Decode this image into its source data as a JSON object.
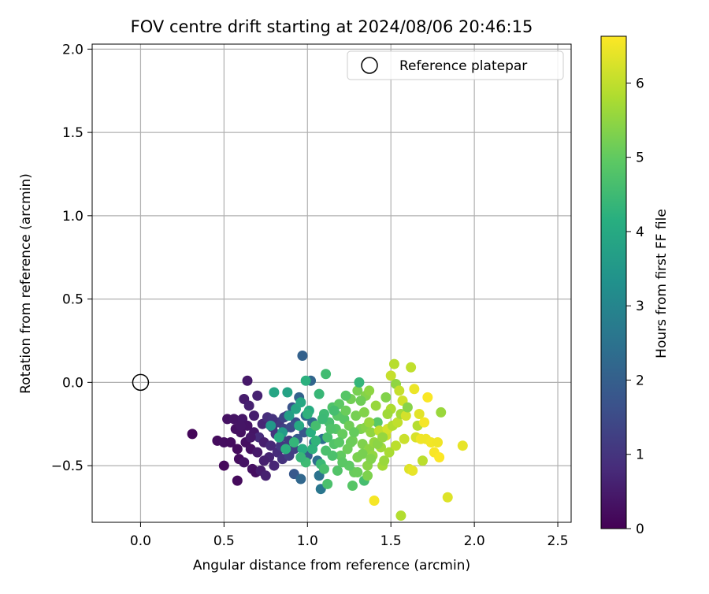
{
  "chart_data": {
    "type": "scatter",
    "title": "FOV centre drift starting at 2024/08/06 20:46:15",
    "xlabel": "Angular distance from reference (arcmin)",
    "ylabel": "Rotation from reference (arcmin)",
    "xlim": [
      -0.29,
      2.58
    ],
    "ylim": [
      -0.84,
      2.03
    ],
    "x_ticks": [
      0.0,
      0.5,
      1.0,
      1.5,
      2.0,
      2.5
    ],
    "y_ticks": [
      -0.5,
      0.0,
      0.5,
      1.0,
      1.5,
      2.0
    ],
    "x_tick_labels": [
      "0.0",
      "0.5",
      "1.0",
      "1.5",
      "2.0",
      "2.5"
    ],
    "y_tick_labels": [
      "−0.5",
      "0.0",
      "0.5",
      "1.0",
      "1.5",
      "2.0"
    ],
    "grid": true,
    "legend": {
      "location": "upper right",
      "entries": [
        "Reference platepar"
      ]
    },
    "reference_point": {
      "x": 0.0,
      "y": 0.0,
      "marker": "open circle",
      "label": "Reference platepar"
    },
    "colorbar": {
      "label": "Hours from first FF file",
      "colormap": "viridis",
      "range": [
        0,
        6.63
      ],
      "ticks": [
        0,
        1,
        2,
        3,
        4,
        5,
        6
      ],
      "tick_labels": [
        "0",
        "1",
        "2",
        "3",
        "4",
        "5",
        "6"
      ]
    },
    "points": [
      {
        "x": 0.31,
        "y": -0.31,
        "h": 0.1
      },
      {
        "x": 0.46,
        "y": -0.35,
        "h": 0.2
      },
      {
        "x": 0.5,
        "y": -0.36,
        "h": 0.25
      },
      {
        "x": 0.5,
        "y": -0.5,
        "h": 0.15
      },
      {
        "x": 0.52,
        "y": -0.22,
        "h": 0.3
      },
      {
        "x": 0.56,
        "y": -0.22,
        "h": 0.35
      },
      {
        "x": 0.57,
        "y": -0.28,
        "h": 0.28
      },
      {
        "x": 0.58,
        "y": -0.4,
        "h": 0.2
      },
      {
        "x": 0.58,
        "y": -0.59,
        "h": 0.18
      },
      {
        "x": 0.59,
        "y": -0.46,
        "h": 0.22
      },
      {
        "x": 0.6,
        "y": -0.3,
        "h": 0.3
      },
      {
        "x": 0.61,
        "y": -0.22,
        "h": 0.4
      },
      {
        "x": 0.62,
        "y": -0.1,
        "h": 0.5
      },
      {
        "x": 0.62,
        "y": -0.48,
        "h": 0.35
      },
      {
        "x": 0.63,
        "y": -0.36,
        "h": 0.25
      },
      {
        "x": 0.64,
        "y": 0.01,
        "h": 0.45
      },
      {
        "x": 0.64,
        "y": -0.26,
        "h": 0.33
      },
      {
        "x": 0.65,
        "y": -0.14,
        "h": 0.6
      },
      {
        "x": 0.66,
        "y": -0.4,
        "h": 0.28
      },
      {
        "x": 0.67,
        "y": -0.52,
        "h": 0.3
      },
      {
        "x": 0.68,
        "y": -0.2,
        "h": 0.55
      },
      {
        "x": 0.68,
        "y": -0.3,
        "h": 0.4
      },
      {
        "x": 0.69,
        "y": -0.54,
        "h": 0.26
      },
      {
        "x": 0.7,
        "y": -0.08,
        "h": 0.62
      },
      {
        "x": 0.7,
        "y": -0.42,
        "h": 0.45
      },
      {
        "x": 0.71,
        "y": -0.33,
        "h": 0.8
      },
      {
        "x": 0.72,
        "y": -0.53,
        "h": 0.5
      },
      {
        "x": 0.73,
        "y": -0.25,
        "h": 0.7
      },
      {
        "x": 0.74,
        "y": -0.36,
        "h": 0.55
      },
      {
        "x": 0.75,
        "y": -0.56,
        "h": 0.6
      },
      {
        "x": 0.76,
        "y": -0.21,
        "h": 0.85
      },
      {
        "x": 0.77,
        "y": -0.45,
        "h": 0.65
      },
      {
        "x": 0.78,
        "y": -0.38,
        "h": 0.75
      },
      {
        "x": 0.79,
        "y": -0.27,
        "h": 0.9
      },
      {
        "x": 0.8,
        "y": -0.5,
        "h": 0.7
      },
      {
        "x": 0.81,
        "y": -0.31,
        "h": 1.0
      },
      {
        "x": 0.82,
        "y": -0.42,
        "h": 0.8
      },
      {
        "x": 0.83,
        "y": -0.24,
        "h": 1.1
      },
      {
        "x": 0.84,
        "y": -0.33,
        "h": 1.2
      },
      {
        "x": 0.85,
        "y": -0.46,
        "h": 0.95
      },
      {
        "x": 0.86,
        "y": -0.28,
        "h": 1.3
      },
      {
        "x": 0.87,
        "y": -0.4,
        "h": 1.05
      },
      {
        "x": 0.88,
        "y": -0.2,
        "h": 1.4
      },
      {
        "x": 0.89,
        "y": -0.35,
        "h": 1.15
      },
      {
        "x": 0.9,
        "y": -0.27,
        "h": 1.5
      },
      {
        "x": 0.91,
        "y": -0.15,
        "h": 1.7
      },
      {
        "x": 0.92,
        "y": -0.4,
        "h": 1.25
      },
      {
        "x": 0.92,
        "y": -0.55,
        "h": 1.8
      },
      {
        "x": 0.93,
        "y": -0.24,
        "h": 1.6
      },
      {
        "x": 0.94,
        "y": -0.34,
        "h": 1.9
      },
      {
        "x": 0.95,
        "y": -0.09,
        "h": 2.1
      },
      {
        "x": 0.96,
        "y": -0.58,
        "h": 2.2
      },
      {
        "x": 0.97,
        "y": 0.16,
        "h": 2.05
      },
      {
        "x": 0.98,
        "y": -0.3,
        "h": 1.75
      },
      {
        "x": 0.99,
        "y": -0.2,
        "h": 2.3
      },
      {
        "x": 1.0,
        "y": -0.44,
        "h": 1.95
      },
      {
        "x": 1.02,
        "y": 0.01,
        "h": 2.15
      },
      {
        "x": 1.03,
        "y": -0.24,
        "h": 2.25
      },
      {
        "x": 1.04,
        "y": -0.36,
        "h": 2.35
      },
      {
        "x": 1.06,
        "y": -0.47,
        "h": 2.4
      },
      {
        "x": 1.07,
        "y": -0.56,
        "h": 2.5
      },
      {
        "x": 1.08,
        "y": -0.64,
        "h": 2.6
      },
      {
        "x": 1.09,
        "y": -0.34,
        "h": 2.45
      },
      {
        "x": 0.54,
        "y": -0.36,
        "h": 0.23
      },
      {
        "x": 0.6,
        "y": -0.26,
        "h": 0.37
      },
      {
        "x": 0.66,
        "y": -0.33,
        "h": 0.42
      },
      {
        "x": 0.74,
        "y": -0.47,
        "h": 0.58
      },
      {
        "x": 0.79,
        "y": -0.22,
        "h": 0.95
      },
      {
        "x": 0.84,
        "y": -0.38,
        "h": 1.08
      },
      {
        "x": 0.86,
        "y": -0.21,
        "h": 1.35
      },
      {
        "x": 0.89,
        "y": -0.44,
        "h": 1.18
      },
      {
        "x": 0.88,
        "y": -0.06,
        "h": 3.8
      },
      {
        "x": 0.8,
        "y": -0.06,
        "h": 3.9
      },
      {
        "x": 0.78,
        "y": -0.26,
        "h": 3.5
      },
      {
        "x": 0.85,
        "y": -0.3,
        "h": 3.6
      },
      {
        "x": 0.89,
        "y": -0.2,
        "h": 3.7
      },
      {
        "x": 0.93,
        "y": -0.16,
        "h": 3.85
      },
      {
        "x": 0.95,
        "y": -0.26,
        "h": 4.0
      },
      {
        "x": 0.97,
        "y": -0.4,
        "h": 4.1
      },
      {
        "x": 0.99,
        "y": 0.01,
        "h": 4.2
      },
      {
        "x": 1.01,
        "y": -0.17,
        "h": 4.05
      },
      {
        "x": 1.02,
        "y": -0.3,
        "h": 4.15
      },
      {
        "x": 1.03,
        "y": -0.4,
        "h": 4.25
      },
      {
        "x": 1.05,
        "y": -0.35,
        "h": 4.3
      },
      {
        "x": 1.07,
        "y": -0.07,
        "h": 4.4
      },
      {
        "x": 1.08,
        "y": -0.49,
        "h": 4.45
      },
      {
        "x": 1.1,
        "y": -0.19,
        "h": 4.5
      },
      {
        "x": 1.11,
        "y": 0.05,
        "h": 4.55
      },
      {
        "x": 1.12,
        "y": -0.33,
        "h": 4.6
      },
      {
        "x": 1.12,
        "y": -0.61,
        "h": 4.7
      },
      {
        "x": 1.13,
        "y": -0.24,
        "h": 4.65
      },
      {
        "x": 1.15,
        "y": -0.15,
        "h": 4.75
      },
      {
        "x": 1.16,
        "y": -0.37,
        "h": 4.8
      },
      {
        "x": 1.17,
        "y": -0.28,
        "h": 4.85
      },
      {
        "x": 1.18,
        "y": -0.2,
        "h": 4.9
      },
      {
        "x": 1.19,
        "y": -0.13,
        "h": 4.95
      },
      {
        "x": 1.2,
        "y": -0.44,
        "h": 5.0
      },
      {
        "x": 1.21,
        "y": -0.31,
        "h": 5.05
      },
      {
        "x": 1.22,
        "y": -0.22,
        "h": 4.88
      },
      {
        "x": 1.23,
        "y": -0.17,
        "h": 5.1
      },
      {
        "x": 1.24,
        "y": -0.4,
        "h": 5.12
      },
      {
        "x": 1.25,
        "y": -0.26,
        "h": 5.15
      },
      {
        "x": 1.26,
        "y": -0.1,
        "h": 5.18
      },
      {
        "x": 1.27,
        "y": -0.35,
        "h": 5.2
      },
      {
        "x": 1.28,
        "y": -0.54,
        "h": 5.08
      },
      {
        "x": 1.29,
        "y": -0.2,
        "h": 5.22
      },
      {
        "x": 1.3,
        "y": -0.05,
        "h": 5.25
      },
      {
        "x": 1.3,
        "y": -0.45,
        "h": 5.28
      },
      {
        "x": 1.31,
        "y": 0.0,
        "h": 4.35
      },
      {
        "x": 1.32,
        "y": -0.28,
        "h": 5.3
      },
      {
        "x": 1.33,
        "y": -0.37,
        "h": 5.32
      },
      {
        "x": 1.34,
        "y": -0.18,
        "h": 5.35
      },
      {
        "x": 1.34,
        "y": -0.59,
        "h": 4.6
      },
      {
        "x": 1.35,
        "y": -0.08,
        "h": 5.38
      },
      {
        "x": 1.35,
        "y": -0.27,
        "h": 5.4
      },
      {
        "x": 1.36,
        "y": -0.5,
        "h": 5.42
      },
      {
        "x": 1.37,
        "y": -0.4,
        "h": 5.45
      },
      {
        "x": 1.37,
        "y": -0.05,
        "h": 5.48
      },
      {
        "x": 1.38,
        "y": -0.3,
        "h": 5.5
      },
      {
        "x": 1.39,
        "y": -0.44,
        "h": 5.52
      },
      {
        "x": 1.4,
        "y": -0.36,
        "h": 5.55
      },
      {
        "x": 1.41,
        "y": -0.14,
        "h": 5.58
      },
      {
        "x": 1.42,
        "y": -0.24,
        "h": 4.9
      },
      {
        "x": 1.43,
        "y": -0.29,
        "h": 6.0
      },
      {
        "x": 1.44,
        "y": -0.39,
        "h": 5.65
      },
      {
        "x": 1.45,
        "y": -0.5,
        "h": 5.7
      },
      {
        "x": 1.46,
        "y": -0.47,
        "h": 5.6
      },
      {
        "x": 1.47,
        "y": -0.09,
        "h": 5.35
      },
      {
        "x": 1.47,
        "y": -0.32,
        "h": 6.1
      },
      {
        "x": 1.48,
        "y": -0.28,
        "h": 6.2
      },
      {
        "x": 1.49,
        "y": -0.42,
        "h": 5.75
      },
      {
        "x": 1.5,
        "y": -0.16,
        "h": 5.8
      },
      {
        "x": 1.5,
        "y": 0.04,
        "h": 6.05
      },
      {
        "x": 1.51,
        "y": -0.26,
        "h": 5.85
      },
      {
        "x": 1.52,
        "y": 0.11,
        "h": 5.9
      },
      {
        "x": 1.53,
        "y": -0.38,
        "h": 5.95
      },
      {
        "x": 1.53,
        "y": -0.01,
        "h": 5.5
      },
      {
        "x": 1.54,
        "y": -0.24,
        "h": 6.0
      },
      {
        "x": 1.55,
        "y": -0.05,
        "h": 6.05
      },
      {
        "x": 1.56,
        "y": -0.19,
        "h": 5.7
      },
      {
        "x": 1.56,
        "y": -0.8,
        "h": 5.85
      },
      {
        "x": 1.57,
        "y": -0.11,
        "h": 6.15
      },
      {
        "x": 1.58,
        "y": -0.34,
        "h": 6.1
      },
      {
        "x": 1.59,
        "y": -0.2,
        "h": 6.2
      },
      {
        "x": 1.6,
        "y": -0.15,
        "h": 5.4
      },
      {
        "x": 1.61,
        "y": -0.52,
        "h": 6.3
      },
      {
        "x": 1.62,
        "y": 0.09,
        "h": 6.0
      },
      {
        "x": 1.63,
        "y": -0.53,
        "h": 6.4
      },
      {
        "x": 1.64,
        "y": -0.04,
        "h": 6.45
      },
      {
        "x": 1.65,
        "y": -0.33,
        "h": 6.25
      },
      {
        "x": 1.66,
        "y": -0.26,
        "h": 5.88
      },
      {
        "x": 1.67,
        "y": -0.19,
        "h": 6.35
      },
      {
        "x": 1.68,
        "y": -0.34,
        "h": 6.5
      },
      {
        "x": 1.69,
        "y": -0.47,
        "h": 5.95
      },
      {
        "x": 1.7,
        "y": -0.24,
        "h": 6.55
      },
      {
        "x": 1.71,
        "y": -0.34,
        "h": 6.48
      },
      {
        "x": 1.72,
        "y": -0.09,
        "h": 6.6
      },
      {
        "x": 1.74,
        "y": -0.36,
        "h": 6.52
      },
      {
        "x": 1.76,
        "y": -0.42,
        "h": 6.58
      },
      {
        "x": 1.78,
        "y": -0.36,
        "h": 6.5
      },
      {
        "x": 1.79,
        "y": -0.45,
        "h": 6.62
      },
      {
        "x": 1.8,
        "y": -0.18,
        "h": 5.6
      },
      {
        "x": 1.84,
        "y": -0.69,
        "h": 6.3
      },
      {
        "x": 1.93,
        "y": -0.38,
        "h": 6.4
      },
      {
        "x": 1.4,
        "y": -0.71,
        "h": 6.55
      },
      {
        "x": 1.36,
        "y": -0.56,
        "h": 5.3
      },
      {
        "x": 1.3,
        "y": -0.54,
        "h": 5.1
      },
      {
        "x": 1.27,
        "y": -0.62,
        "h": 4.85
      },
      {
        "x": 1.25,
        "y": -0.5,
        "h": 4.95
      },
      {
        "x": 1.18,
        "y": -0.53,
        "h": 4.8
      },
      {
        "x": 1.15,
        "y": -0.44,
        "h": 4.7
      },
      {
        "x": 1.1,
        "y": -0.52,
        "h": 4.65
      },
      {
        "x": 0.99,
        "y": -0.48,
        "h": 4.5
      },
      {
        "x": 0.96,
        "y": -0.45,
        "h": 4.4
      },
      {
        "x": 0.92,
        "y": -0.36,
        "h": 4.35
      },
      {
        "x": 0.87,
        "y": -0.4,
        "h": 4.2
      },
      {
        "x": 0.83,
        "y": -0.33,
        "h": 4.1
      },
      {
        "x": 1.05,
        "y": -0.26,
        "h": 4.6
      },
      {
        "x": 1.14,
        "y": -0.28,
        "h": 4.75
      },
      {
        "x": 1.19,
        "y": -0.36,
        "h": 4.9
      },
      {
        "x": 1.28,
        "y": -0.3,
        "h": 5.05
      },
      {
        "x": 1.33,
        "y": -0.43,
        "h": 5.25
      },
      {
        "x": 1.38,
        "y": -0.46,
        "h": 5.35
      },
      {
        "x": 1.42,
        "y": -0.37,
        "h": 5.45
      },
      {
        "x": 1.45,
        "y": -0.33,
        "h": 5.55
      },
      {
        "x": 1.48,
        "y": -0.19,
        "h": 5.65
      },
      {
        "x": 1.37,
        "y": -0.24,
        "h": 5.6
      },
      {
        "x": 1.32,
        "y": -0.11,
        "h": 5.15
      },
      {
        "x": 1.23,
        "y": -0.08,
        "h": 4.85
      },
      {
        "x": 1.16,
        "y": -0.17,
        "h": 4.6
      },
      {
        "x": 1.09,
        "y": -0.22,
        "h": 4.45
      },
      {
        "x": 1.0,
        "y": -0.19,
        "h": 4.25
      },
      {
        "x": 0.96,
        "y": -0.12,
        "h": 3.95
      },
      {
        "x": 1.11,
        "y": -0.41,
        "h": 4.68
      },
      {
        "x": 1.21,
        "y": -0.48,
        "h": 4.92
      },
      {
        "x": 1.26,
        "y": -0.36,
        "h": 5.12
      }
    ]
  }
}
